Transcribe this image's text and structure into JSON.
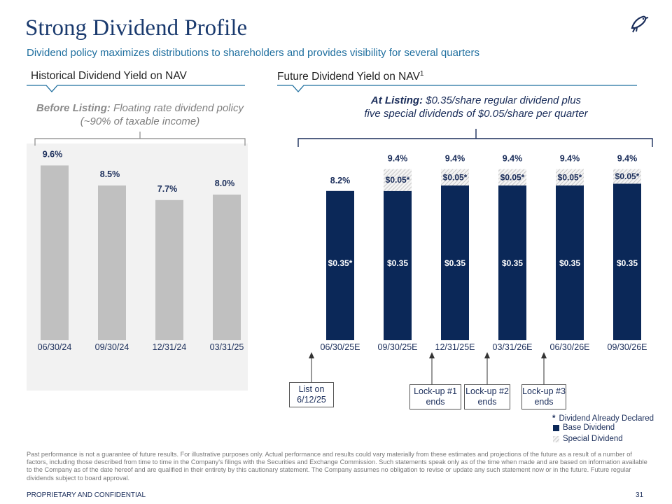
{
  "header": {
    "title": "Strong Dividend Profile",
    "subtitle": "Dividend policy maximizes distributions to shareholders and provides visibility for several quarters"
  },
  "sections": {
    "historical": {
      "heading": "Historical Dividend Yield on NAV",
      "note_bold": "Before Listing:",
      "note_rest": " Floating rate dividend policy",
      "note_line2": "(~90% of taxable income)"
    },
    "future": {
      "heading": "Future Dividend Yield on NAV",
      "heading_sup": "1",
      "note_bold": "At Listing:",
      "note_rest": " $0.35/share regular dividend plus",
      "note_line2": "five special dividends of $0.05/share per quarter"
    }
  },
  "chart_data": [
    {
      "type": "bar",
      "categories": [
        "06/30/24",
        "09/30/24",
        "12/31/24",
        "03/31/25"
      ],
      "values": [
        9.6,
        8.5,
        7.7,
        8.0
      ],
      "value_labels": [
        "9.6%",
        "8.5%",
        "7.7%",
        "8.0%"
      ],
      "ylabel": "",
      "color": "#c0c0c0"
    },
    {
      "type": "bar",
      "stacked": true,
      "categories": [
        "06/30/25E",
        "09/30/25E",
        "12/31/25E",
        "03/31/26E",
        "06/30/26E",
        "09/30/26E"
      ],
      "series": [
        {
          "name": "Base Dividend",
          "values": [
            8.2,
            8.2,
            8.5,
            8.5,
            8.5,
            8.6
          ],
          "labels": [
            "$0.35*",
            "$0.35",
            "$0.35",
            "$0.35",
            "$0.35",
            "$0.35"
          ],
          "color": "#0b2858"
        },
        {
          "name": "Special Dividend",
          "values": [
            0,
            1.2,
            0.9,
            0.9,
            0.9,
            0.8
          ],
          "labels": [
            "",
            "$0.05*",
            "$0.05*",
            "$0.05*",
            "$0.05*",
            "$0.05*"
          ],
          "color": "#d8d8d8"
        }
      ],
      "totals": [
        "8.2%",
        "9.4%",
        "9.4%",
        "9.4%",
        "9.4%",
        "9.4%"
      ]
    }
  ],
  "callouts": [
    {
      "line1": "List on",
      "line2": "6/12/25"
    },
    {
      "line1": "Lock-up #1",
      "line2": "ends"
    },
    {
      "line1": "Lock-up #2",
      "line2": "ends"
    },
    {
      "line1": "Lock-up #3",
      "line2": "ends"
    }
  ],
  "legend": {
    "declared_marker": "*",
    "declared": "Dividend Already Declared",
    "base": "Base Dividend",
    "special": "Special Dividend"
  },
  "disclaimer": "Past performance is not a guarantee of future results. For illustrative purposes only. Actual performance and results could vary materially from these estimates and projections of the future as a result of a number of factors, including those described from time to time in the Company's filings with the Securities and Exchange Commission. Such statements speak only as of the time when made and are based on information available to the Company as of the date hereof and are qualified in their entirety by this cautionary statement. The Company assumes no obligation to revise or update any such statement now or in the future. Future regular dividends subject to board approval.",
  "footer": {
    "left": "PROPRIETARY AND CONFIDENTIAL",
    "page": "31"
  },
  "colors": {
    "title": "#1a3a6e",
    "subtitle": "#1f6f9f",
    "base": "#0b2858",
    "historical": "#c0c0c0"
  },
  "logo_icon": "bird-logo-icon"
}
